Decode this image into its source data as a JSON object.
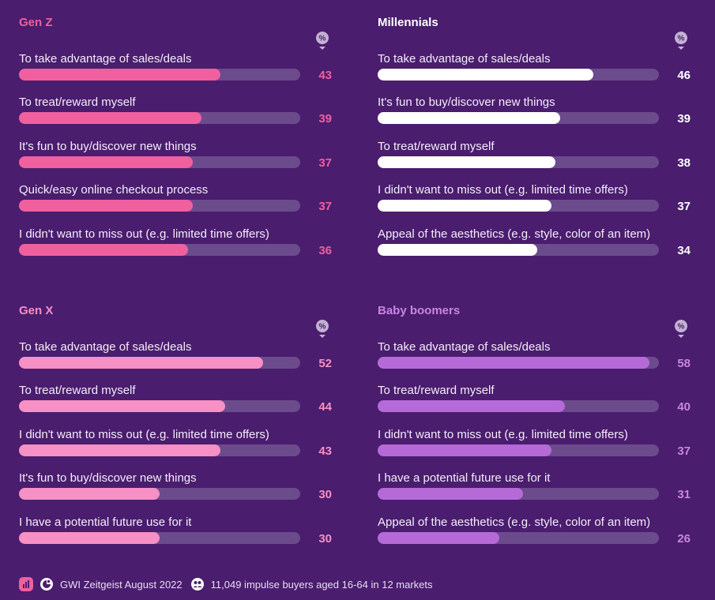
{
  "chart_data": [
    {
      "type": "bar",
      "title": "Gen Z",
      "unit_badge": "%",
      "categories": [
        "To take advantage of sales/deals",
        "To treat/reward myself",
        "It's fun to buy/discover new things",
        "Quick/easy online checkout process",
        "I didn't want to miss out (e.g. limited time offers)"
      ],
      "values": [
        43,
        39,
        37,
        37,
        36
      ],
      "xlim": [
        0,
        60
      ],
      "colors": {
        "title": "#f0609e",
        "fill": "#f0609e",
        "value": "#f0609e"
      }
    },
    {
      "type": "bar",
      "title": "Millennials",
      "unit_badge": "%",
      "categories": [
        "To take advantage of sales/deals",
        "It's fun to buy/discover new things",
        "To treat/reward myself",
        "I didn't want to miss out (e.g. limited time offers)",
        "Appeal of the aesthetics (e.g. style, color of an item)"
      ],
      "values": [
        46,
        39,
        38,
        37,
        34
      ],
      "xlim": [
        0,
        60
      ],
      "colors": {
        "title": "#ffffff",
        "fill": "#ffffff",
        "value": "#ffffff"
      }
    },
    {
      "type": "bar",
      "title": "Gen X",
      "unit_badge": "%",
      "categories": [
        "To take advantage of sales/deals",
        "To treat/reward myself",
        "I didn't want to miss out (e.g. limited time offers)",
        "It's fun to buy/discover new things",
        "I have a potential future use for it"
      ],
      "values": [
        52,
        44,
        43,
        30,
        30
      ],
      "xlim": [
        0,
        60
      ],
      "colors": {
        "title": "#f790c4",
        "fill": "#f790c4",
        "value": "#f790c4"
      }
    },
    {
      "type": "bar",
      "title": "Baby boomers",
      "unit_badge": "%",
      "categories": [
        "To take advantage of sales/deals",
        "To treat/reward myself",
        "I didn't want to miss out (e.g. limited time offers)",
        "I have a potential future use for it",
        "Appeal of the aesthetics (e.g. style, color of an item)"
      ],
      "values": [
        58,
        40,
        37,
        31,
        26
      ],
      "xlim": [
        0,
        60
      ],
      "colors": {
        "title": "#c985e3",
        "fill": "#b66ad8",
        "value": "#c985e3"
      }
    }
  ],
  "footer": {
    "source": "GWI Zeitgeist August 2022",
    "base": "11,049 impulse buyers aged 16-64 in 12 markets",
    "icons": [
      "bar-chart-icon",
      "source-icon",
      "people-icon"
    ]
  },
  "colors": {
    "background": "#4a1d6e",
    "track": "#6c4b8d",
    "badge": "#c3b2d3",
    "footer_icon_pink": "#f0609e"
  }
}
